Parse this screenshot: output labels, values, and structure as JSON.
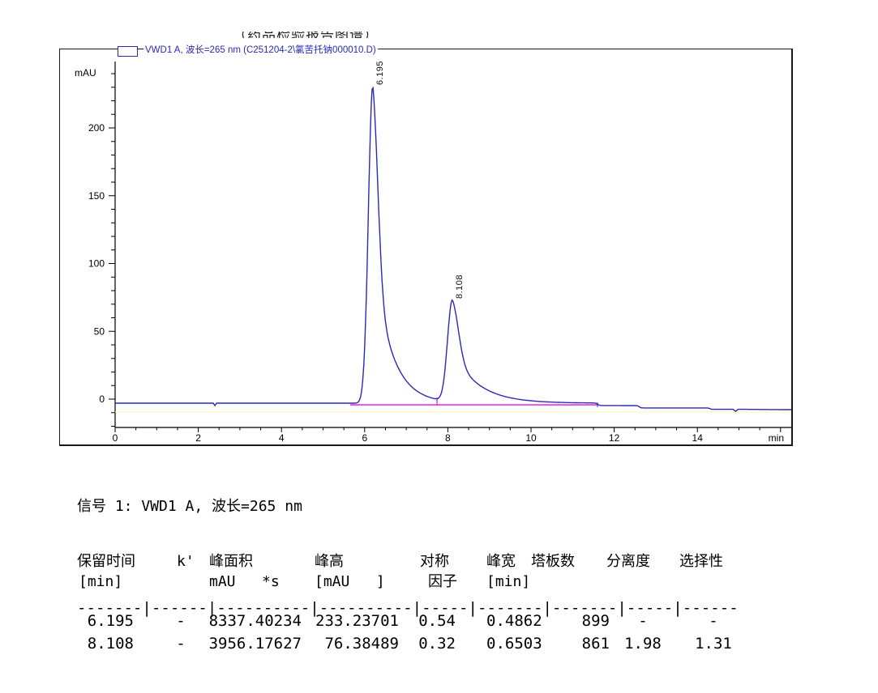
{
  "page": {
    "clipped_top_text": "（药品检验报告图谱）"
  },
  "chromatogram": {
    "legend_label": "VWD1 A, 波长=265 nm (C251204-2\\氯苦托钠000010.D)",
    "y_axis_unit": "mAU",
    "x_axis_unit": "min"
  },
  "chart_data": {
    "type": "line",
    "title": "VWD1 A, 波长=265 nm (C251204-2\\氯苦托钠000010.D)",
    "xlabel": "min",
    "ylabel": "mAU",
    "x_range": [
      0,
      16.3
    ],
    "y_range": [
      -20,
      249
    ],
    "x_ticks": [
      0,
      2,
      4,
      6,
      8,
      10,
      12,
      14
    ],
    "y_ticks": [
      0,
      50,
      100,
      150,
      200
    ],
    "grid": false,
    "legend_position": "top",
    "trace_color": "#2a2ab8",
    "baseline_color": "#e632e6",
    "peaks": [
      {
        "label": "6.195",
        "rt_min": 6.195,
        "height_mau": 233.23701,
        "area": 8337.40234,
        "width_min": 0.4862
      },
      {
        "label": "8.108",
        "rt_min": 8.108,
        "height_mau": 76.38489,
        "area": 3956.17627,
        "width_min": 0.6503
      }
    ],
    "integration_baseline": {
      "start_min": 5.65,
      "end_min": 11.6,
      "level_mau": -4.2,
      "valley_min": 7.74
    },
    "signal_baseline_mau": -3
  },
  "signal_header": "信号 1: VWD1 A, 波长=265 nm",
  "peak_table": {
    "columns": [
      {
        "label": "保留时间",
        "unit": "[min]"
      },
      {
        "label": "k'",
        "unit": ""
      },
      {
        "label": "峰面积",
        "unit": "mAU   *s"
      },
      {
        "label": "峰高",
        "unit": "[mAU   ]"
      },
      {
        "label": "对称",
        "unit": "因子"
      },
      {
        "label": "峰宽",
        "unit": "[min]"
      },
      {
        "label": "塔板数",
        "unit": ""
      },
      {
        "label": "分离度",
        "unit": ""
      },
      {
        "label": "选择性",
        "unit": ""
      }
    ],
    "separator": "-------|------|----------|----------|-----|-------|-------|-----|------",
    "rows": [
      [
        "6.195",
        "-",
        "8337.40234",
        "233.23701",
        "0.54",
        "0.4862",
        "899",
        "-",
        "-"
      ],
      [
        "8.108",
        "-",
        "3956.17627",
        "76.38489",
        "0.32",
        "0.6503",
        "861",
        "1.98",
        "1.31"
      ]
    ]
  }
}
